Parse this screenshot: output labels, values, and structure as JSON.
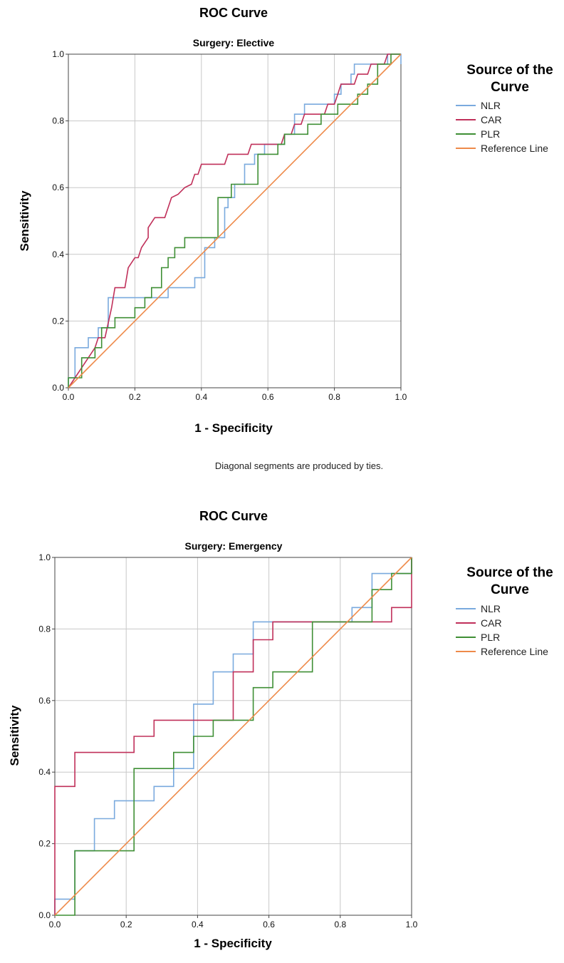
{
  "legend_title_line1": "Source of the",
  "legend_title_line2": "Curve",
  "colors": {
    "NLR": "#7aaade",
    "CAR": "#c0305a",
    "PLR": "#3f8f35",
    "Reference Line": "#ee8a4a"
  },
  "chart_data": [
    {
      "type": "line",
      "title": "ROC Curve",
      "subtitle": "Surgery: Elective",
      "xlabel": "1 - Specificity",
      "ylabel": "Sensitivity",
      "xlim": [
        0,
        1
      ],
      "ylim": [
        0,
        1
      ],
      "xticks": [
        "0.0",
        "0.2",
        "0.4",
        "0.6",
        "0.8",
        "1.0"
      ],
      "yticks": [
        "0.0",
        "0.2",
        "0.4",
        "0.6",
        "0.8",
        "1.0"
      ],
      "grid": true,
      "legend_position": "right",
      "footnote": "Diagonal segments are produced by ties.",
      "series": [
        {
          "name": "NLR",
          "points": [
            [
              0,
              0
            ],
            [
              0,
              0.03
            ],
            [
              0.02,
              0.03
            ],
            [
              0.02,
              0.12
            ],
            [
              0.06,
              0.12
            ],
            [
              0.06,
              0.15
            ],
            [
              0.09,
              0.15
            ],
            [
              0.09,
              0.18
            ],
            [
              0.12,
              0.18
            ],
            [
              0.12,
              0.27
            ],
            [
              0.3,
              0.27
            ],
            [
              0.3,
              0.3
            ],
            [
              0.38,
              0.3
            ],
            [
              0.38,
              0.33
            ],
            [
              0.41,
              0.33
            ],
            [
              0.41,
              0.42
            ],
            [
              0.44,
              0.42
            ],
            [
              0.44,
              0.45
            ],
            [
              0.47,
              0.45
            ],
            [
              0.47,
              0.54
            ],
            [
              0.48,
              0.54
            ],
            [
              0.48,
              0.57
            ],
            [
              0.5,
              0.57
            ],
            [
              0.5,
              0.61
            ],
            [
              0.53,
              0.61
            ],
            [
              0.53,
              0.67
            ],
            [
              0.56,
              0.67
            ],
            [
              0.56,
              0.7
            ],
            [
              0.59,
              0.7
            ],
            [
              0.59,
              0.73
            ],
            [
              0.65,
              0.73
            ],
            [
              0.65,
              0.76
            ],
            [
              0.68,
              0.76
            ],
            [
              0.68,
              0.82
            ],
            [
              0.71,
              0.82
            ],
            [
              0.71,
              0.85
            ],
            [
              0.8,
              0.85
            ],
            [
              0.8,
              0.88
            ],
            [
              0.82,
              0.88
            ],
            [
              0.82,
              0.91
            ],
            [
              0.85,
              0.91
            ],
            [
              0.85,
              0.94
            ],
            [
              0.86,
              0.94
            ],
            [
              0.86,
              0.97
            ],
            [
              0.96,
              0.97
            ],
            [
              0.96,
              1
            ],
            [
              1,
              1
            ],
            [
              1,
              0.97
            ]
          ]
        },
        {
          "name": "CAR",
          "points": [
            [
              0,
              0
            ],
            [
              0.02,
              0.03
            ],
            [
              0.04,
              0.06
            ],
            [
              0.06,
              0.09
            ],
            [
              0.08,
              0.12
            ],
            [
              0.09,
              0.15
            ],
            [
              0.11,
              0.15
            ],
            [
              0.13,
              0.24
            ],
            [
              0.14,
              0.3
            ],
            [
              0.17,
              0.3
            ],
            [
              0.18,
              0.36
            ],
            [
              0.2,
              0.39
            ],
            [
              0.21,
              0.39
            ],
            [
              0.22,
              0.42
            ],
            [
              0.24,
              0.45
            ],
            [
              0.24,
              0.48
            ],
            [
              0.26,
              0.51
            ],
            [
              0.29,
              0.51
            ],
            [
              0.3,
              0.54
            ],
            [
              0.31,
              0.57
            ],
            [
              0.33,
              0.58
            ],
            [
              0.35,
              0.6
            ],
            [
              0.37,
              0.61
            ],
            [
              0.38,
              0.64
            ],
            [
              0.39,
              0.64
            ],
            [
              0.4,
              0.67
            ],
            [
              0.47,
              0.67
            ],
            [
              0.48,
              0.7
            ],
            [
              0.54,
              0.7
            ],
            [
              0.55,
              0.73
            ],
            [
              0.64,
              0.73
            ],
            [
              0.65,
              0.76
            ],
            [
              0.67,
              0.76
            ],
            [
              0.68,
              0.79
            ],
            [
              0.7,
              0.79
            ],
            [
              0.71,
              0.82
            ],
            [
              0.77,
              0.82
            ],
            [
              0.78,
              0.85
            ],
            [
              0.8,
              0.85
            ],
            [
              0.81,
              0.88
            ],
            [
              0.82,
              0.91
            ],
            [
              0.86,
              0.91
            ],
            [
              0.87,
              0.94
            ],
            [
              0.9,
              0.94
            ],
            [
              0.91,
              0.97
            ],
            [
              0.95,
              0.97
            ],
            [
              0.96,
              1
            ],
            [
              1,
              1
            ]
          ]
        },
        {
          "name": "PLR",
          "points": [
            [
              0,
              0
            ],
            [
              0,
              0.03
            ],
            [
              0.04,
              0.03
            ],
            [
              0.04,
              0.09
            ],
            [
              0.08,
              0.09
            ],
            [
              0.08,
              0.12
            ],
            [
              0.1,
              0.12
            ],
            [
              0.1,
              0.18
            ],
            [
              0.14,
              0.18
            ],
            [
              0.14,
              0.21
            ],
            [
              0.2,
              0.21
            ],
            [
              0.2,
              0.24
            ],
            [
              0.23,
              0.24
            ],
            [
              0.23,
              0.27
            ],
            [
              0.25,
              0.27
            ],
            [
              0.25,
              0.3
            ],
            [
              0.28,
              0.3
            ],
            [
              0.28,
              0.36
            ],
            [
              0.3,
              0.36
            ],
            [
              0.3,
              0.39
            ],
            [
              0.32,
              0.39
            ],
            [
              0.32,
              0.42
            ],
            [
              0.35,
              0.42
            ],
            [
              0.35,
              0.45
            ],
            [
              0.45,
              0.45
            ],
            [
              0.45,
              0.57
            ],
            [
              0.49,
              0.57
            ],
            [
              0.49,
              0.61
            ],
            [
              0.57,
              0.61
            ],
            [
              0.57,
              0.7
            ],
            [
              0.63,
              0.7
            ],
            [
              0.63,
              0.73
            ],
            [
              0.65,
              0.73
            ],
            [
              0.65,
              0.76
            ],
            [
              0.72,
              0.76
            ],
            [
              0.72,
              0.79
            ],
            [
              0.76,
              0.79
            ],
            [
              0.76,
              0.82
            ],
            [
              0.81,
              0.82
            ],
            [
              0.81,
              0.85
            ],
            [
              0.87,
              0.85
            ],
            [
              0.87,
              0.88
            ],
            [
              0.9,
              0.88
            ],
            [
              0.9,
              0.91
            ],
            [
              0.93,
              0.91
            ],
            [
              0.93,
              0.97
            ],
            [
              0.97,
              0.97
            ],
            [
              0.97,
              1
            ],
            [
              1,
              1
            ]
          ]
        },
        {
          "name": "Reference Line",
          "points": [
            [
              0,
              0
            ],
            [
              1,
              1
            ]
          ]
        }
      ]
    },
    {
      "type": "line",
      "title": "ROC Curve",
      "subtitle": "Surgery: Emergency",
      "xlabel": "1 - Specificity",
      "ylabel": "Sensitivity",
      "xlim": [
        0,
        1
      ],
      "ylim": [
        0,
        1
      ],
      "xticks": [
        "0.0",
        "0.2",
        "0.4",
        "0.6",
        "0.8",
        "1.0"
      ],
      "yticks": [
        "0.0",
        "0.2",
        "0.4",
        "0.6",
        "0.8",
        "1.0"
      ],
      "grid": true,
      "legend_position": "right",
      "series": [
        {
          "name": "NLR",
          "points": [
            [
              0,
              0
            ],
            [
              0,
              0.045
            ],
            [
              0.056,
              0.045
            ],
            [
              0.056,
              0.18
            ],
            [
              0.111,
              0.18
            ],
            [
              0.111,
              0.27
            ],
            [
              0.167,
              0.27
            ],
            [
              0.167,
              0.32
            ],
            [
              0.278,
              0.32
            ],
            [
              0.278,
              0.36
            ],
            [
              0.333,
              0.36
            ],
            [
              0.333,
              0.41
            ],
            [
              0.389,
              0.41
            ],
            [
              0.389,
              0.59
            ],
            [
              0.444,
              0.59
            ],
            [
              0.444,
              0.68
            ],
            [
              0.5,
              0.68
            ],
            [
              0.5,
              0.73
            ],
            [
              0.556,
              0.73
            ],
            [
              0.556,
              0.82
            ],
            [
              0.833,
              0.82
            ],
            [
              0.833,
              0.86
            ],
            [
              0.889,
              0.86
            ],
            [
              0.889,
              0.955
            ],
            [
              1,
              0.955
            ],
            [
              1,
              1
            ]
          ]
        },
        {
          "name": "CAR",
          "points": [
            [
              0,
              0
            ],
            [
              0,
              0.36
            ],
            [
              0.056,
              0.36
            ],
            [
              0.056,
              0.455
            ],
            [
              0.222,
              0.455
            ],
            [
              0.222,
              0.5
            ],
            [
              0.278,
              0.5
            ],
            [
              0.278,
              0.545
            ],
            [
              0.5,
              0.545
            ],
            [
              0.5,
              0.68
            ],
            [
              0.556,
              0.68
            ],
            [
              0.556,
              0.77
            ],
            [
              0.611,
              0.77
            ],
            [
              0.611,
              0.82
            ],
            [
              0.944,
              0.82
            ],
            [
              0.944,
              0.86
            ],
            [
              1,
              0.86
            ],
            [
              1,
              1
            ]
          ]
        },
        {
          "name": "PLR",
          "points": [
            [
              0,
              0
            ],
            [
              0.056,
              0
            ],
            [
              0.056,
              0.18
            ],
            [
              0.222,
              0.18
            ],
            [
              0.222,
              0.41
            ],
            [
              0.333,
              0.41
            ],
            [
              0.333,
              0.455
            ],
            [
              0.389,
              0.455
            ],
            [
              0.389,
              0.5
            ],
            [
              0.444,
              0.5
            ],
            [
              0.444,
              0.545
            ],
            [
              0.556,
              0.545
            ],
            [
              0.556,
              0.636
            ],
            [
              0.611,
              0.636
            ],
            [
              0.611,
              0.68
            ],
            [
              0.722,
              0.68
            ],
            [
              0.722,
              0.82
            ],
            [
              0.833,
              0.82
            ],
            [
              0.889,
              0.82
            ],
            [
              0.889,
              0.91
            ],
            [
              0.944,
              0.91
            ],
            [
              0.944,
              0.955
            ],
            [
              1,
              0.955
            ],
            [
              1,
              1
            ]
          ]
        },
        {
          "name": "Reference Line",
          "points": [
            [
              0,
              0
            ],
            [
              1,
              1
            ]
          ]
        }
      ]
    }
  ]
}
